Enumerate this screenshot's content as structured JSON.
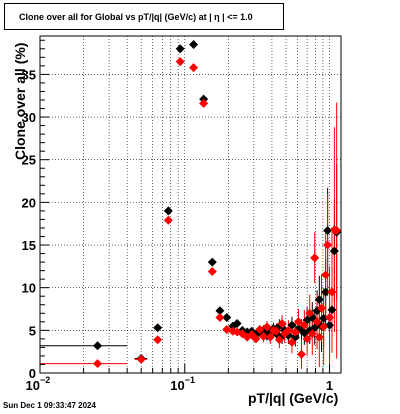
{
  "title": "Clone  over all for Global vs pT/|q| (GeV/c) at |  η  | <= 1.0",
  "timestamp": "Sun Dec  1 09:33:47 2024",
  "chart_data": {
    "type": "scatter",
    "title": "Clone  over all for Global vs pT/|q| (GeV/c) at |  η  | <= 1.0",
    "xlabel": "pT/|q| (GeV/c)",
    "ylabel": "Clone  over all (%)",
    "xscale": "log",
    "xlim": [
      0.01,
      1.2
    ],
    "ylim": [
      0,
      39.5
    ],
    "grid": true,
    "x_ticks": [
      {
        "value": 0.01,
        "label": "10",
        "exp": "−2"
      },
      {
        "value": 0.1,
        "label": "10",
        "exp": "−1"
      },
      {
        "value": 1,
        "label": "1",
        "exp": ""
      }
    ],
    "y_ticks": [
      0,
      5,
      10,
      15,
      20,
      25,
      30,
      35
    ],
    "series": [
      {
        "color": "#000000",
        "marker": "diamond",
        "points": [
          {
            "x": 0.025,
            "y": 3.2,
            "xerr": 0.015
          },
          {
            "x": 0.05,
            "y": 1.7,
            "xerr": 0.005
          },
          {
            "x": 0.065,
            "y": 5.3
          },
          {
            "x": 0.077,
            "y": 19.0
          },
          {
            "x": 0.093,
            "y": 38.0
          },
          {
            "x": 0.115,
            "y": 38.5
          },
          {
            "x": 0.135,
            "y": 32.1
          },
          {
            "x": 0.155,
            "y": 13.0
          },
          {
            "x": 0.175,
            "y": 7.3
          },
          {
            "x": 0.195,
            "y": 6.5
          },
          {
            "x": 0.215,
            "y": 5.5
          },
          {
            "x": 0.23,
            "y": 5.8
          },
          {
            "x": 0.25,
            "y": 5.0
          },
          {
            "x": 0.27,
            "y": 4.8
          },
          {
            "x": 0.29,
            "y": 4.9
          },
          {
            "x": 0.31,
            "y": 4.5
          },
          {
            "x": 0.33,
            "y": 4.7
          },
          {
            "x": 0.35,
            "y": 5.0,
            "yerr": 0.6
          },
          {
            "x": 0.37,
            "y": 4.4,
            "yerr": 0.6
          },
          {
            "x": 0.39,
            "y": 4.8,
            "yerr": 0.7
          },
          {
            "x": 0.41,
            "y": 5.2,
            "yerr": 0.7
          },
          {
            "x": 0.43,
            "y": 4.6,
            "yerr": 0.8
          },
          {
            "x": 0.45,
            "y": 5.5,
            "yerr": 0.8
          },
          {
            "x": 0.47,
            "y": 4.3,
            "yerr": 0.9
          },
          {
            "x": 0.49,
            "y": 5.0,
            "yerr": 0.9
          },
          {
            "x": 0.52,
            "y": 4.4,
            "yerr": 1.0
          },
          {
            "x": 0.55,
            "y": 5.6,
            "yerr": 1.0
          },
          {
            "x": 0.58,
            "y": 4.2,
            "yerr": 1.1
          },
          {
            "x": 0.61,
            "y": 5.2,
            "yerr": 1.2
          },
          {
            "x": 0.64,
            "y": 5.0,
            "yerr": 1.3
          },
          {
            "x": 0.67,
            "y": 4.7,
            "yerr": 1.4
          },
          {
            "x": 0.7,
            "y": 6.2,
            "yerr": 1.5
          },
          {
            "x": 0.73,
            "y": 5.0,
            "yerr": 1.6
          },
          {
            "x": 0.76,
            "y": 6.5,
            "yerr": 1.8
          },
          {
            "x": 0.79,
            "y": 5.3,
            "yerr": 2.0
          },
          {
            "x": 0.82,
            "y": 7.3,
            "yerr": 2.4
          },
          {
            "x": 0.85,
            "y": 8.6,
            "yerr": 2.8
          },
          {
            "x": 0.88,
            "y": 5.5,
            "yerr": 3.0
          },
          {
            "x": 0.91,
            "y": 6.4,
            "yerr": 3.4
          },
          {
            "x": 0.94,
            "y": 9.5,
            "yerr": 4.0
          },
          {
            "x": 0.97,
            "y": 16.7,
            "yerr": 5.0
          },
          {
            "x": 1.0,
            "y": 5.6,
            "yerr": 4.0
          },
          {
            "x": 1.04,
            "y": 7.4,
            "yerr": 5.0
          },
          {
            "x": 1.08,
            "y": 14.3,
            "yerr": 6.0
          },
          {
            "x": 1.12,
            "y": 16.5,
            "yerr": 8.0
          }
        ]
      },
      {
        "color": "#ff0000",
        "marker": "diamond",
        "points": [
          {
            "x": 0.025,
            "y": 1.1,
            "xerr": 0.015
          },
          {
            "x": 0.05,
            "y": 1.6,
            "xerr": 0.005
          },
          {
            "x": 0.065,
            "y": 3.9
          },
          {
            "x": 0.077,
            "y": 17.9
          },
          {
            "x": 0.093,
            "y": 36.5
          },
          {
            "x": 0.115,
            "y": 35.8
          },
          {
            "x": 0.135,
            "y": 31.6
          },
          {
            "x": 0.155,
            "y": 11.9
          },
          {
            "x": 0.175,
            "y": 6.5
          },
          {
            "x": 0.195,
            "y": 5.1
          },
          {
            "x": 0.215,
            "y": 4.9
          },
          {
            "x": 0.23,
            "y": 4.8
          },
          {
            "x": 0.25,
            "y": 4.6
          },
          {
            "x": 0.27,
            "y": 4.2
          },
          {
            "x": 0.29,
            "y": 4.5
          },
          {
            "x": 0.31,
            "y": 4.0
          },
          {
            "x": 0.33,
            "y": 5.1
          },
          {
            "x": 0.35,
            "y": 4.3,
            "yerr": 0.7
          },
          {
            "x": 0.37,
            "y": 5.4,
            "yerr": 0.7
          },
          {
            "x": 0.39,
            "y": 4.2,
            "yerr": 0.8
          },
          {
            "x": 0.41,
            "y": 5.0,
            "yerr": 0.8
          },
          {
            "x": 0.43,
            "y": 4.9,
            "yerr": 0.9
          },
          {
            "x": 0.45,
            "y": 3.9,
            "yerr": 1.0
          },
          {
            "x": 0.47,
            "y": 5.8,
            "yerr": 1.0
          },
          {
            "x": 0.49,
            "y": 4.6,
            "yerr": 1.1
          },
          {
            "x": 0.52,
            "y": 5.0,
            "yerr": 1.2
          },
          {
            "x": 0.55,
            "y": 3.6,
            "yerr": 1.3
          },
          {
            "x": 0.58,
            "y": 4.8,
            "yerr": 1.4
          },
          {
            "x": 0.61,
            "y": 6.0,
            "yerr": 1.5
          },
          {
            "x": 0.64,
            "y": 2.2,
            "yerr": 1.7
          },
          {
            "x": 0.67,
            "y": 5.6,
            "yerr": 1.8
          },
          {
            "x": 0.7,
            "y": 4.0,
            "yerr": 2.0
          },
          {
            "x": 0.73,
            "y": 7.0,
            "yerr": 2.2
          },
          {
            "x": 0.76,
            "y": 4.6,
            "yerr": 2.5
          },
          {
            "x": 0.79,
            "y": 13.5,
            "yerr": 3.0
          },
          {
            "x": 0.82,
            "y": 6.0,
            "yerr": 3.2
          },
          {
            "x": 0.85,
            "y": 4.2,
            "yerr": 3.5
          },
          {
            "x": 0.88,
            "y": 7.6,
            "yerr": 4.0
          },
          {
            "x": 0.91,
            "y": 5.4,
            "yerr": 4.5
          },
          {
            "x": 0.94,
            "y": 11.5,
            "yerr": 5.0
          },
          {
            "x": 0.97,
            "y": 15.0,
            "yerr": 6.0
          },
          {
            "x": 1.0,
            "y": 6.5,
            "yerr": 6.0
          },
          {
            "x": 1.04,
            "y": 9.5,
            "yerr": 7.0
          },
          {
            "x": 1.08,
            "y": 16.8,
            "yerr": 12.0
          },
          {
            "x": 1.12,
            "y": 16.7,
            "yerr": 15.0
          }
        ]
      }
    ]
  }
}
